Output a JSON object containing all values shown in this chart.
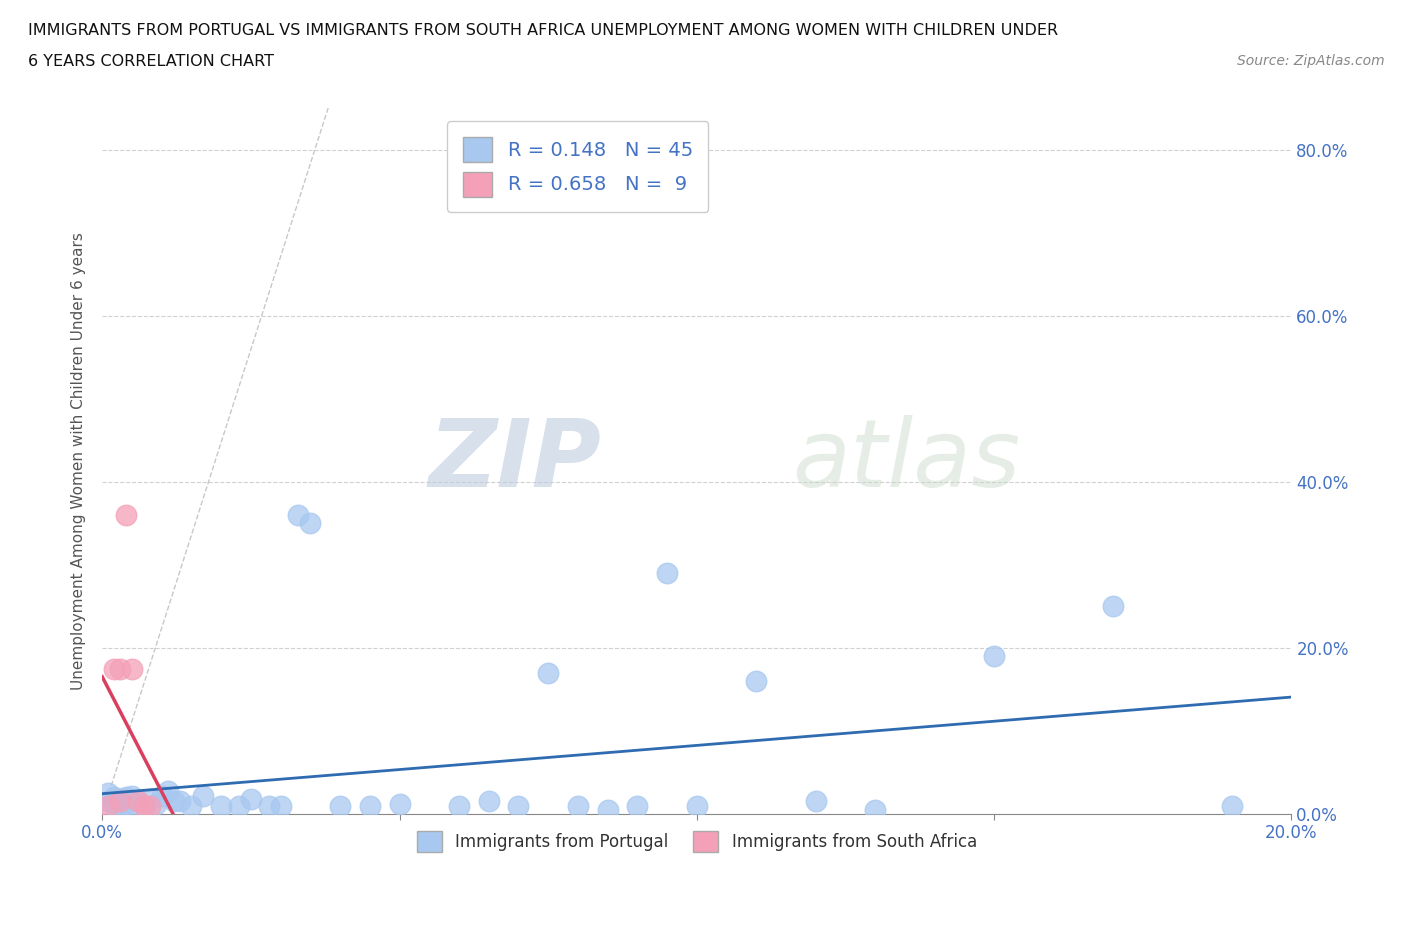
{
  "title_line1": "IMMIGRANTS FROM PORTUGAL VS IMMIGRANTS FROM SOUTH AFRICA UNEMPLOYMENT AMONG WOMEN WITH CHILDREN UNDER",
  "title_line2": "6 YEARS CORRELATION CHART",
  "source": "Source: ZipAtlas.com",
  "ylabel": "Unemployment Among Women with Children Under 6 years",
  "xlim": [
    0.0,
    0.2
  ],
  "ylim": [
    0.0,
    0.85
  ],
  "xticks": [
    0.0,
    0.05,
    0.1,
    0.15,
    0.2
  ],
  "yticks": [
    0.0,
    0.2,
    0.4,
    0.6,
    0.8
  ],
  "xtick_labels_bottom": [
    "0.0%",
    "",
    "",
    "",
    "20.0%"
  ],
  "ytick_labels_right": [
    "0.0%",
    "20.0%",
    "40.0%",
    "60.0%",
    "80.0%"
  ],
  "R_portugal": 0.148,
  "N_portugal": 45,
  "R_southafrica": 0.658,
  "N_southafrica": 9,
  "color_portugal": "#A8C8F0",
  "color_southafrica": "#F4A0B8",
  "trendline_portugal_color": "#2E6BB0",
  "trendline_southafrica_color": "#D94060",
  "trendline_ref_color": "#C8C8C8",
  "background_color": "#FFFFFF",
  "grid_color": "#CCCCCC",
  "watermark_zip": "ZIP",
  "watermark_atlas": "atlas",
  "portugal_x": [
    0.001,
    0.001,
    0.002,
    0.002,
    0.003,
    0.003,
    0.004,
    0.004,
    0.005,
    0.005,
    0.006,
    0.007,
    0.008,
    0.009,
    0.01,
    0.011,
    0.012,
    0.013,
    0.015,
    0.017,
    0.02,
    0.023,
    0.025,
    0.028,
    0.03,
    0.033,
    0.035,
    0.04,
    0.045,
    0.05,
    0.06,
    0.065,
    0.07,
    0.075,
    0.08,
    0.085,
    0.09,
    0.095,
    0.1,
    0.11,
    0.12,
    0.13,
    0.15,
    0.17,
    0.19
  ],
  "portugal_y": [
    0.015,
    0.025,
    0.02,
    0.01,
    0.01,
    0.018,
    0.012,
    0.02,
    0.008,
    0.022,
    0.015,
    0.01,
    0.018,
    0.012,
    0.022,
    0.028,
    0.015,
    0.015,
    0.01,
    0.022,
    0.01,
    0.01,
    0.018,
    0.01,
    0.01,
    0.36,
    0.35,
    0.01,
    0.01,
    0.012,
    0.01,
    0.015,
    0.01,
    0.17,
    0.01,
    0.005,
    0.01,
    0.29,
    0.01,
    0.16,
    0.015,
    0.005,
    0.19,
    0.25,
    0.01
  ],
  "southafrica_x": [
    0.001,
    0.002,
    0.003,
    0.003,
    0.004,
    0.005,
    0.006,
    0.007,
    0.008
  ],
  "southafrica_y": [
    0.01,
    0.175,
    0.175,
    0.015,
    0.36,
    0.175,
    0.015,
    0.01,
    0.01
  ]
}
